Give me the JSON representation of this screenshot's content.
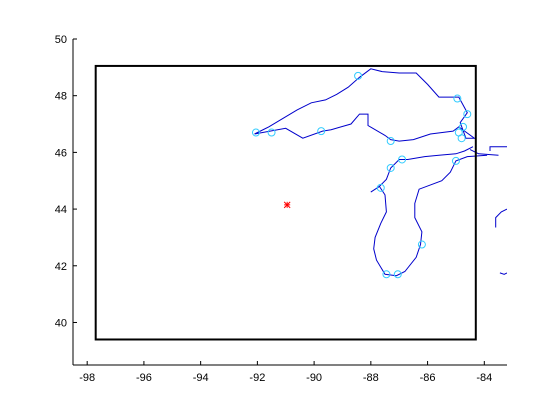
{
  "chart_data": {
    "type": "line",
    "title": "",
    "xlabel": "",
    "ylabel": "",
    "xlim": [
      -98.5,
      -83.2
    ],
    "ylim": [
      38.5,
      50
    ],
    "x_ticks": [
      -98,
      -96,
      -94,
      -92,
      -90,
      -88,
      -86,
      -84
    ],
    "x_tick_labels": [
      "-98",
      "-96",
      "-94",
      "-92",
      "-90",
      "-88",
      "-86",
      "-84"
    ],
    "y_ticks": [
      40,
      42,
      44,
      46,
      48,
      50
    ],
    "y_tick_labels": [
      "40",
      "42",
      "44",
      "46",
      "48",
      "50"
    ],
    "grid": false,
    "box_color": "#000000",
    "coast_color": "#0000cc",
    "marker_color": "#33ccff",
    "center_color": "#ff0000",
    "bounding_box": {
      "lon_min": -97.7,
      "lon_max": -84.3,
      "lat_min": 39.4,
      "lat_max": 49.05
    },
    "center_point": {
      "lon": -90.95,
      "lat": 44.15
    },
    "coastlines": [
      [
        [
          -92.1,
          46.65
        ],
        [
          -91.6,
          46.9
        ],
        [
          -91.1,
          47.2
        ],
        [
          -90.6,
          47.5
        ],
        [
          -90.1,
          47.75
        ],
        [
          -89.6,
          47.85
        ],
        [
          -89.2,
          48.05
        ],
        [
          -88.8,
          48.3
        ],
        [
          -88.4,
          48.65
        ],
        [
          -88.0,
          48.95
        ],
        [
          -87.6,
          48.85
        ],
        [
          -87.0,
          48.8
        ],
        [
          -86.4,
          48.8
        ],
        [
          -86.0,
          48.4
        ],
        [
          -85.6,
          47.95
        ],
        [
          -84.9,
          47.95
        ],
        [
          -84.6,
          47.4
        ],
        [
          -84.85,
          47.05
        ],
        [
          -84.65,
          46.5
        ],
        [
          -84.35,
          46.5
        ],
        [
          -84.9,
          46.9
        ],
        [
          -85.1,
          46.75
        ],
        [
          -85.9,
          46.65
        ],
        [
          -86.5,
          46.45
        ],
        [
          -87.0,
          46.4
        ],
        [
          -87.3,
          46.45
        ],
        [
          -87.5,
          46.6
        ],
        [
          -88.1,
          46.95
        ],
        [
          -88.1,
          47.35
        ],
        [
          -88.4,
          47.35
        ],
        [
          -88.7,
          47.0
        ],
        [
          -89.4,
          46.8
        ],
        [
          -89.7,
          46.75
        ],
        [
          -90.4,
          46.5
        ],
        [
          -91.0,
          46.85
        ],
        [
          -91.55,
          46.75
        ],
        [
          -92.1,
          46.65
        ]
      ],
      [
        [
          -84.4,
          46.2
        ],
        [
          -84.7,
          46.05
        ],
        [
          -85.0,
          45.95
        ],
        [
          -85.6,
          45.9
        ],
        [
          -86.1,
          45.85
        ],
        [
          -86.7,
          45.75
        ],
        [
          -87.0,
          45.75
        ],
        [
          -87.3,
          45.45
        ],
        [
          -87.45,
          45.05
        ],
        [
          -87.7,
          44.8
        ],
        [
          -88.0,
          44.6
        ],
        [
          -87.7,
          44.8
        ],
        [
          -87.5,
          44.5
        ],
        [
          -87.45,
          43.9
        ],
        [
          -87.65,
          43.5
        ],
        [
          -87.85,
          43.0
        ],
        [
          -87.9,
          42.6
        ],
        [
          -87.8,
          42.2
        ],
        [
          -87.5,
          41.7
        ],
        [
          -87.1,
          41.65
        ],
        [
          -86.8,
          41.8
        ],
        [
          -86.4,
          42.3
        ],
        [
          -86.25,
          42.75
        ],
        [
          -86.2,
          43.2
        ],
        [
          -86.45,
          43.7
        ],
        [
          -86.45,
          44.2
        ],
        [
          -86.3,
          44.7
        ],
        [
          -85.5,
          45.0
        ],
        [
          -85.2,
          45.3
        ],
        [
          -85.0,
          45.7
        ],
        [
          -84.6,
          45.85
        ],
        [
          -83.9,
          45.9
        ]
      ],
      [
        [
          -84.5,
          46.1
        ],
        [
          -84.2,
          45.95
        ],
        [
          -83.5,
          45.9
        ]
      ],
      [
        [
          -83.8,
          46.05
        ],
        [
          -83.8,
          46.2
        ],
        [
          -83.2,
          46.2
        ]
      ],
      [
        [
          -83.2,
          44.0
        ],
        [
          -83.4,
          43.9
        ],
        [
          -83.6,
          43.7
        ],
        [
          -83.6,
          43.35
        ]
      ],
      [
        [
          -83.2,
          41.75
        ],
        [
          -83.3,
          41.7
        ],
        [
          -83.45,
          41.75
        ]
      ]
    ],
    "markers": [
      {
        "lon": -92.05,
        "lat": 46.7
      },
      {
        "lon": -91.5,
        "lat": 46.7
      },
      {
        "lon": -89.75,
        "lat": 46.75
      },
      {
        "lon": -88.45,
        "lat": 48.7
      },
      {
        "lon": -84.95,
        "lat": 47.9
      },
      {
        "lon": -84.6,
        "lat": 47.35
      },
      {
        "lon": -84.75,
        "lat": 46.9
      },
      {
        "lon": -84.9,
        "lat": 46.7
      },
      {
        "lon": -84.8,
        "lat": 46.5
      },
      {
        "lon": -87.3,
        "lat": 46.4
      },
      {
        "lon": -86.9,
        "lat": 45.75
      },
      {
        "lon": -85.0,
        "lat": 45.7
      },
      {
        "lon": -87.3,
        "lat": 45.45
      },
      {
        "lon": -87.65,
        "lat": 44.75
      },
      {
        "lon": -86.2,
        "lat": 42.75
      },
      {
        "lon": -87.45,
        "lat": 41.7
      },
      {
        "lon": -87.05,
        "lat": 41.7
      }
    ]
  }
}
